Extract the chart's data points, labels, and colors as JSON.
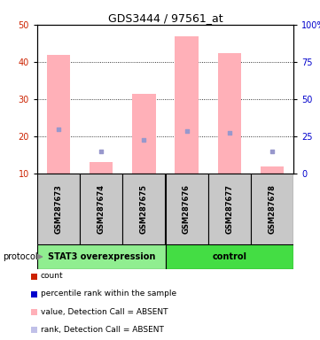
{
  "title": "GDS3444 / 97561_at",
  "samples": [
    "GSM287673",
    "GSM287674",
    "GSM287675",
    "GSM287676",
    "GSM287677",
    "GSM287678"
  ],
  "pink_bar_values": [
    42.0,
    13.0,
    31.5,
    47.0,
    42.5,
    12.0
  ],
  "blue_square_values": [
    22.0,
    16.0,
    19.0,
    21.5,
    21.0,
    16.0
  ],
  "ylim_left": [
    10,
    50
  ],
  "ylim_right": [
    0,
    100
  ],
  "yticks_left": [
    10,
    20,
    30,
    40,
    50
  ],
  "yticks_right": [
    0,
    25,
    50,
    75,
    100
  ],
  "ytick_labels_right": [
    "0",
    "25",
    "50",
    "75",
    "100%"
  ],
  "groups": [
    {
      "label": "STAT3 overexpression",
      "start": 0,
      "end": 3,
      "color": "#90EE90"
    },
    {
      "label": "control",
      "start": 3,
      "end": 6,
      "color": "#44DD44"
    }
  ],
  "protocol_label": "protocol",
  "bar_color": "#FFB0B8",
  "blue_color": "#9898CC",
  "axis_left_color": "#CC2200",
  "axis_right_color": "#0000CC",
  "grid_dotted_at": [
    20,
    30,
    40
  ],
  "legend_colors": [
    "#CC2200",
    "#0000CC",
    "#FFB0B8",
    "#C0C0E8"
  ],
  "legend_labels": [
    "count",
    "percentile rank within the sample",
    "value, Detection Call = ABSENT",
    "rank, Detection Call = ABSENT"
  ],
  "sample_box_color": "#C8C8C8",
  "bar_width": 0.55
}
